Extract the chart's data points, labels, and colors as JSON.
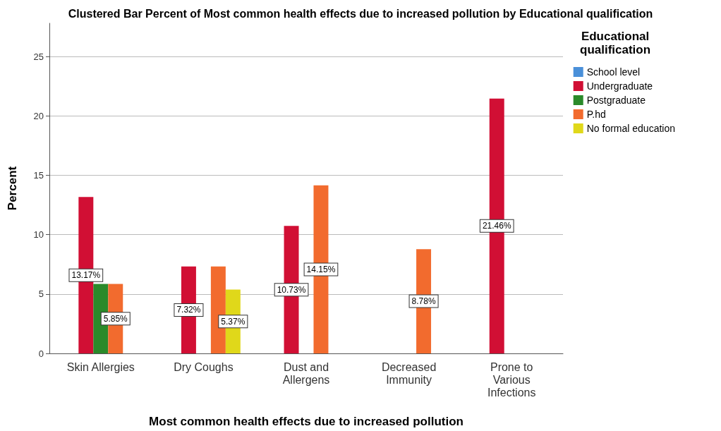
{
  "chart_data": {
    "type": "bar",
    "title": "Clustered Bar Percent of Most common health effects due to increased pollution by Educational qualification",
    "xlabel": "Most common health effects due to increased pollution",
    "ylabel": "Percent",
    "legend_title": "Educational\nqualification",
    "categories": [
      "Skin Allergies",
      "Dry Coughs",
      "Dust and\nAllergens",
      "Decreased\nImmunity",
      "Prone to\nVarious\nInfections"
    ],
    "series": [
      {
        "name": "School level",
        "color": "#4a90d9",
        "values": [
          null,
          null,
          null,
          null,
          null
        ]
      },
      {
        "name": "Undergraduate",
        "color": "#d10f34",
        "values": [
          13.17,
          7.32,
          10.73,
          null,
          21.46
        ],
        "value_labels": [
          "13.17%",
          "7.32%",
          "10.73%",
          null,
          "21.46%"
        ]
      },
      {
        "name": "Postgraduate",
        "color": "#2a8a2a",
        "values": [
          5.85,
          null,
          null,
          null,
          null
        ]
      },
      {
        "name": "P.hd",
        "color": "#f26b2e",
        "values": [
          5.85,
          7.32,
          14.15,
          8.78,
          null
        ],
        "value_labels": [
          "5.85%",
          null,
          "14.15%",
          "8.78%",
          null
        ]
      },
      {
        "name": "No formal education",
        "color": "#e0d81a",
        "values": [
          null,
          5.37,
          null,
          null,
          null
        ],
        "value_labels": [
          null,
          "5.37%",
          null,
          null,
          null
        ]
      }
    ],
    "ylim": [
      0,
      27.8
    ],
    "yticks": [
      0,
      5,
      10,
      15,
      20,
      25
    ],
    "grid": "y",
    "legend": "top right"
  }
}
